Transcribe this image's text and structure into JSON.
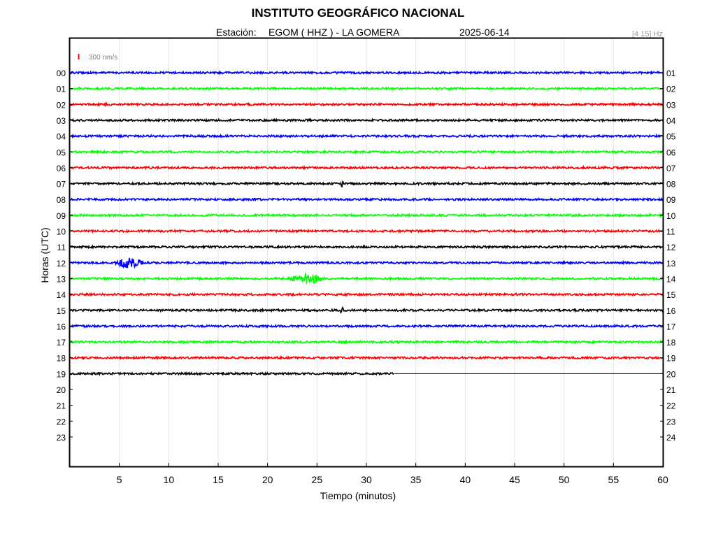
{
  "header": {
    "title": "INSTITUTO GEOGRÁFICO NACIONAL",
    "station_label": "Estación:",
    "station_value": "EGOM ( HHZ ) - LA GOMERA",
    "date": "2025-06-14",
    "filter": "[4 15] Hz"
  },
  "chart_data": {
    "type": "line",
    "title": "INSTITUTO GEOGRÁFICO NACIONAL",
    "xlabel": "Tiempo (minutos)",
    "ylabel": "Horas (UTC)",
    "xlim": [
      0,
      60
    ],
    "x_ticks": [
      "5",
      "10",
      "15",
      "20",
      "25",
      "30",
      "35",
      "40",
      "45",
      "50",
      "55",
      "60"
    ],
    "y_ticks_left": [
      "00",
      "01",
      "02",
      "03",
      "04",
      "05",
      "06",
      "07",
      "08",
      "09",
      "10",
      "11",
      "12",
      "13",
      "14",
      "15",
      "16",
      "17",
      "18",
      "19",
      "20",
      "21",
      "22",
      "23"
    ],
    "y_ticks_right": [
      "01",
      "02",
      "03",
      "04",
      "05",
      "06",
      "07",
      "08",
      "09",
      "10",
      "11",
      "12",
      "13",
      "14",
      "15",
      "16",
      "17",
      "18",
      "19",
      "20",
      "21",
      "22",
      "23",
      "24"
    ],
    "grid": true,
    "scale_bar": {
      "label": "300 nm/s",
      "color": "#ff0000"
    },
    "color_cycle": [
      "#0000ff",
      "#00ff00",
      "#ff0000",
      "#000000"
    ],
    "traces": [
      {
        "hour": "00",
        "color": "#0000ff",
        "end_minute": 60
      },
      {
        "hour": "01",
        "color": "#00ff00",
        "end_minute": 60
      },
      {
        "hour": "02",
        "color": "#ff0000",
        "end_minute": 60
      },
      {
        "hour": "03",
        "color": "#000000",
        "end_minute": 60
      },
      {
        "hour": "04",
        "color": "#0000ff",
        "end_minute": 60
      },
      {
        "hour": "05",
        "color": "#00ff00",
        "end_minute": 60
      },
      {
        "hour": "06",
        "color": "#ff0000",
        "end_minute": 60
      },
      {
        "hour": "07",
        "color": "#000000",
        "end_minute": 60,
        "events": [
          {
            "minute": 27.3,
            "duration": 0.4,
            "amplitude": 5
          }
        ]
      },
      {
        "hour": "08",
        "color": "#0000ff",
        "end_minute": 60
      },
      {
        "hour": "09",
        "color": "#00ff00",
        "end_minute": 60
      },
      {
        "hour": "10",
        "color": "#ff0000",
        "end_minute": 60
      },
      {
        "hour": "11",
        "color": "#000000",
        "end_minute": 60
      },
      {
        "hour": "12",
        "color": "#0000ff",
        "end_minute": 60,
        "events": [
          {
            "minute": 4.5,
            "duration": 3.0,
            "amplitude": 6
          }
        ]
      },
      {
        "hour": "13",
        "color": "#00ff00",
        "end_minute": 60,
        "events": [
          {
            "minute": 22.0,
            "duration": 4.0,
            "amplitude": 6
          }
        ]
      },
      {
        "hour": "14",
        "color": "#ff0000",
        "end_minute": 60
      },
      {
        "hour": "15",
        "color": "#000000",
        "end_minute": 60,
        "events": [
          {
            "minute": 27.3,
            "duration": 0.4,
            "amplitude": 5
          }
        ]
      },
      {
        "hour": "16",
        "color": "#0000ff",
        "end_minute": 60
      },
      {
        "hour": "17",
        "color": "#00ff00",
        "end_minute": 60
      },
      {
        "hour": "18",
        "color": "#ff0000",
        "end_minute": 60
      },
      {
        "hour": "19",
        "color": "#000000",
        "end_minute": 32.8
      }
    ]
  }
}
